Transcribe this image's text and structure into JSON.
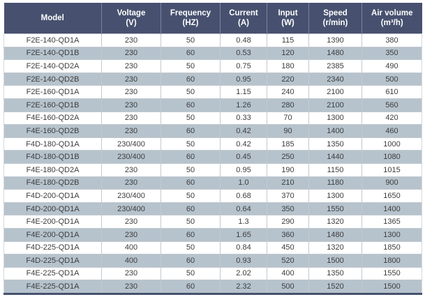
{
  "table": {
    "name": "fan-specifications",
    "columns": [
      {
        "label": "Model",
        "unit": ""
      },
      {
        "label": "Voltage",
        "unit": "(V)"
      },
      {
        "label": "Frequency",
        "unit": "(HZ)"
      },
      {
        "label": "Current",
        "unit": "(A)"
      },
      {
        "label": "Input",
        "unit": "(W)"
      },
      {
        "label": "Speed",
        "unit": "(r/min)"
      },
      {
        "label": "Air volume",
        "unit": "(m³/h)"
      }
    ],
    "rows": [
      [
        "F2E-140-QD1A",
        "230",
        "50",
        "0.48",
        "115",
        "1390",
        "380"
      ],
      [
        "F2E-140-QD1B",
        "230",
        "60",
        "0.53",
        "120",
        "1480",
        "350"
      ],
      [
        "F2E-140-QD2A",
        "230",
        "50",
        "0.75",
        "180",
        "2385",
        "490"
      ],
      [
        "F2E-140-QD2B",
        "230",
        "60",
        "0.95",
        "220",
        "2340",
        "500"
      ],
      [
        "F2E-160-QD1A",
        "230",
        "50",
        "1.15",
        "240",
        "2100",
        "610"
      ],
      [
        "F2E-160-QD1B",
        "230",
        "60",
        "1.26",
        "280",
        "2100",
        "560"
      ],
      [
        "F4E-160-QD2A",
        "230",
        "50",
        "0.33",
        "70",
        "1300",
        "420"
      ],
      [
        "F4E-160-QD2B",
        "230",
        "60",
        "0.42",
        "90",
        "1400",
        "460"
      ],
      [
        "F4D-180-QD1A",
        "230/400",
        "50",
        "0.42",
        "185",
        "1350",
        "1000"
      ],
      [
        "F4D-180-QD1B",
        "230/400",
        "60",
        "0.45",
        "250",
        "1440",
        "1080"
      ],
      [
        "F4E-180-QD2A",
        "230",
        "50",
        "0.95",
        "190",
        "1150",
        "1015"
      ],
      [
        "F4E-180-QD2B",
        "230",
        "60",
        "1.0",
        "210",
        "1180",
        "900"
      ],
      [
        "F4D-200-QD1A",
        "230/400",
        "50",
        "0.68",
        "370",
        "1300",
        "1650"
      ],
      [
        "F4D-200-QD1A",
        "230/400",
        "60",
        "0.64",
        "350",
        "1550",
        "1400"
      ],
      [
        "F4E-200-QD1A",
        "230",
        "50",
        "1.3",
        "290",
        "1320",
        "1365"
      ],
      [
        "F4E-200-QD1A",
        "230",
        "60",
        "1.65",
        "360",
        "1480",
        "1300"
      ],
      [
        "F4D-225-QD1A",
        "400",
        "50",
        "0.84",
        "450",
        "1320",
        "1850"
      ],
      [
        "F4D-225-QD1A",
        "400",
        "60",
        "0.93",
        "520",
        "1500",
        "1800"
      ],
      [
        "F4E-225-QD1A",
        "230",
        "50",
        "2.02",
        "400",
        "1350",
        "1550"
      ],
      [
        "F4E-225-QD1A",
        "230",
        "60",
        "2.32",
        "500",
        "1520",
        "1500"
      ]
    ]
  },
  "colors": {
    "header_bg": "#47516f",
    "header_text": "#ffffff",
    "header_separator": "#7b85a0",
    "row_stripe_bg": "#b6c3cd",
    "row_white_bg": "#ffffff",
    "grid_line": "#c2c9d0",
    "data_text": "#3d3d3d",
    "bottom_bar": "#47516f"
  }
}
